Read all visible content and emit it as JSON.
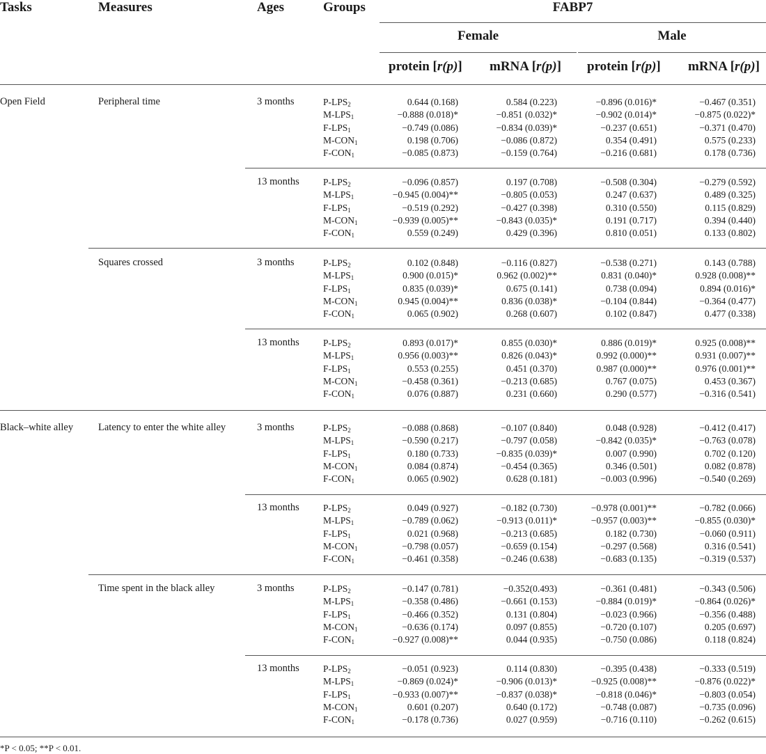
{
  "header": {
    "tasks": "Tasks",
    "measures": "Measures",
    "ages": "Ages",
    "groups": "Groups",
    "fabp7": "FABP7",
    "female": "Female",
    "male": "Male",
    "protein": "protein",
    "mrna": "mRNA",
    "stat": "r(p)"
  },
  "groups": [
    {
      "name": "P-LPS",
      "sub": "2"
    },
    {
      "name": "M-LPS",
      "sub": "1"
    },
    {
      "name": "F-LPS",
      "sub": "1"
    },
    {
      "name": "M-CON",
      "sub": "1"
    },
    {
      "name": "F-CON",
      "sub": "1"
    }
  ],
  "blocks": [
    {
      "task": "Open Field",
      "measure": "Peripheral time",
      "age": "3 months",
      "fp": [
        "0.644 (0.168)",
        "−0.888 (0.018)*",
        "−0.749 (0.086)",
        "0.198 (0.706)",
        "−0.085 (0.873)"
      ],
      "fm": [
        "0.584 (0.223)",
        "−0.851 (0.032)*",
        "−0.834 (0.039)*",
        "−0.086 (0.872)",
        "−0.159 (0.764)"
      ],
      "mp": [
        "−0.896 (0.016)*",
        "−0.902 (0.014)*",
        "−0.237 (0.651)",
        "0.354 (0.491)",
        "−0.216 (0.681)"
      ],
      "mm": [
        "−0.467 (0.351)",
        "−0.875 (0.022)*",
        "−0.371 (0.470)",
        "0.575 (0.233)",
        "0.178 (0.736)"
      ]
    },
    {
      "task": "",
      "measure": "",
      "age": "13 months",
      "fp": [
        "−0.096 (0.857)",
        "−0.945 (0.004)**",
        "−0.519 (0.292)",
        "−0.939 (0.005)**",
        "0.559 (0.249)"
      ],
      "fm": [
        "0.197 (0.708)",
        "−0.805 (0.053)",
        "−0.427 (0.398)",
        "−0.843 (0.035)*",
        "0.429 (0.396)"
      ],
      "mp": [
        "−0.508 (0.304)",
        "0.247 (0.637)",
        "0.310 (0.550)",
        "0.191 (0.717)",
        "0.810 (0.051)"
      ],
      "mm": [
        "−0.279 (0.592)",
        "0.489 (0.325)",
        "0.115 (0.829)",
        "0.394 (0.440)",
        "0.133 (0.802)"
      ]
    },
    {
      "task": "",
      "measure": "Squares crossed",
      "age": "3 months",
      "fp": [
        "0.102 (0.848)",
        "0.900 (0.015)*",
        "0.835 (0.039)*",
        "0.945 (0.004)**",
        "0.065 (0.902)"
      ],
      "fm": [
        "−0.116 (0.827)",
        "0.962 (0.002)**",
        "0.675 (0.141)",
        "0.836 (0.038)*",
        "0.268 (0.607)"
      ],
      "mp": [
        "−0.538 (0.271)",
        "0.831 (0.040)*",
        "0.738 (0.094)",
        "−0.104 (0.844)",
        "0.102 (0.847)"
      ],
      "mm": [
        "0.143 (0.788)",
        "0.928 (0.008)**",
        "0.894 (0.016)*",
        "−0.364 (0.477)",
        "0.477 (0.338)"
      ]
    },
    {
      "task": "",
      "measure": "",
      "age": "13 months",
      "fp": [
        "0.893 (0.017)*",
        "0.956 (0.003)**",
        "0.553 (0.255)",
        "−0.458 (0.361)",
        "0.076 (0.887)"
      ],
      "fm": [
        "0.855 (0.030)*",
        "0.826 (0.043)*",
        "0.451 (0.370)",
        "−0.213 (0.685)",
        "0.231 (0.660)"
      ],
      "mp": [
        "0.886 (0.019)*",
        "0.992 (0.000)**",
        "0.987 (0.000)**",
        "0.767 (0.075)",
        "0.290 (0.577)"
      ],
      "mm": [
        "0.925 (0.008)**",
        "0.931 (0.007)**",
        "0.976 (0.001)**",
        "0.453 (0.367)",
        "−0.316 (0.541)"
      ]
    },
    {
      "task": "Black–white alley",
      "measure": "Latency to enter the white alley",
      "age": "3 months",
      "fp": [
        "−0.088 (0.868)",
        "−0.590 (0.217)",
        "0.180 (0.733)",
        "0.084 (0.874)",
        "0.065 (0.902)"
      ],
      "fm": [
        "−0.107 (0.840)",
        "−0.797 (0.058)",
        "−0.835 (0.039)*",
        "−0.454 (0.365)",
        "0.628 (0.181)"
      ],
      "mp": [
        "0.048 (0.928)",
        "−0.842 (0.035)*",
        "0.007 (0.990)",
        "0.346 (0.501)",
        "−0.003 (0.996)"
      ],
      "mm": [
        "−0.412 (0.417)",
        "−0.763 (0.078)",
        "0.702 (0.120)",
        "0.082 (0.878)",
        "−0.540 (0.269)"
      ]
    },
    {
      "task": "",
      "measure": "",
      "age": "13 months",
      "fp": [
        "0.049 (0.927)",
        "−0.789 (0.062)",
        "0.021 (0.968)",
        "−0.798 (0.057)",
        "−0.461 (0.358)"
      ],
      "fm": [
        "−0.182 (0.730)",
        "−0.913 (0.011)*",
        "−0.213 (0.685)",
        "−0.659 (0.154)",
        "−0.246 (0.638)"
      ],
      "mp": [
        "−0.978 (0.001)**",
        "−0.957 (0.003)**",
        "0.182 (0.730)",
        "−0.297 (0.568)",
        "−0.683 (0.135)"
      ],
      "mm": [
        "−0.782 (0.066)",
        "−0.855 (0.030)*",
        "−0.060 (0.911)",
        "0.316 (0.541)",
        "−0.319 (0.537)"
      ]
    },
    {
      "task": "",
      "measure": "Time spent in the black alley",
      "age": "3 months",
      "fp": [
        "−0.147 (0.781)",
        "−0.358 (0.486)",
        "−0.466 (0.352)",
        "−0.636 (0.174)",
        "−0.927 (0.008)**"
      ],
      "fm": [
        "−0.352(0.493)",
        "−0.661 (0.153)",
        "0.131 (0.804)",
        "0.097 (0.855)",
        "0.044 (0.935)"
      ],
      "mp": [
        "−0.361 (0.481)",
        "−0.884 (0.019)*",
        "−0.023 (0.966)",
        "−0.720 (0.107)",
        "−0.750 (0.086)"
      ],
      "mm": [
        "−0.343 (0.506)",
        "−0.864 (0.026)*",
        "−0.356 (0.488)",
        "0.205 (0.697)",
        "0.118 (0.824)"
      ]
    },
    {
      "task": "",
      "measure": "",
      "age": "13 months",
      "fp": [
        "−0.051 (0.923)",
        "−0.869 (0.024)*",
        "−0.933 (0.007)**",
        "0.601 (0.207)",
        "−0.178 (0.736)"
      ],
      "fm": [
        "0.114 (0.830)",
        "−0.906 (0.013)*",
        "−0.837 (0.038)*",
        "0.640 (0.172)",
        "0.027 (0.959)"
      ],
      "mp": [
        "−0.395 (0.438)",
        "−0.925 (0.008)**",
        "−0.818 (0.046)*",
        "−0.748 (0.087)",
        "−0.716 (0.110)"
      ],
      "mm": [
        "−0.333 (0.519)",
        "−0.876 (0.022)*",
        "−0.803 (0.054)",
        "−0.735 (0.096)",
        "−0.262 (0.615)"
      ]
    }
  ],
  "footnote": "*P < 0.05; **P < 0.01."
}
